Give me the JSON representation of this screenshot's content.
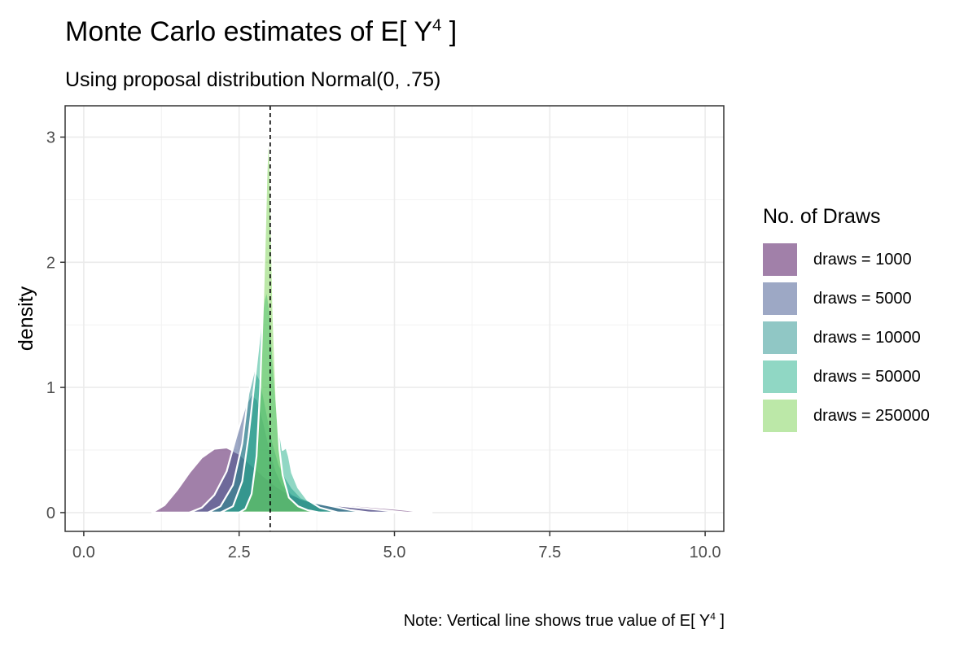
{
  "title": {
    "main": "Monte Carlo estimates of E[ Y",
    "sup": "4",
    "tail": " ]"
  },
  "subtitle": "Using proposal distribution Normal(0, .75)",
  "caption": {
    "main": "Note: Vertical line shows true value of E[ Y",
    "sup": "4",
    "tail": " ]"
  },
  "legend": {
    "title": "No. of Draws",
    "items": [
      {
        "label": "draws = 1000",
        "color": "#440154"
      },
      {
        "label": "draws = 5000",
        "color": "#3B528B"
      },
      {
        "label": "draws = 10000",
        "color": "#21908C"
      },
      {
        "label": "draws = 50000",
        "color": "#21B089"
      },
      {
        "label": "draws = 250000",
        "color": "#7AD151"
      }
    ]
  },
  "chart_data": {
    "type": "area",
    "title": "Monte Carlo estimates of E[ Y^4 ]",
    "subtitle": "Using proposal distribution Normal(0, .75)",
    "xlabel": "",
    "ylabel": "density",
    "xlim": [
      -0.3,
      10.3
    ],
    "ylim": [
      -0.15,
      3.25
    ],
    "xticks": [
      0,
      2.5,
      5,
      7.5,
      10
    ],
    "xtick_labels": [
      "0.0",
      "2.5",
      "5.0",
      "7.5",
      "10.0"
    ],
    "yticks": [
      0,
      1,
      2,
      3
    ],
    "ytick_labels": [
      "0",
      "1",
      "2",
      "3"
    ],
    "grid": true,
    "legend_position": "right",
    "fill_opacity": 0.5,
    "reference_line": {
      "x": 3.0,
      "style": "dashed",
      "color": "#000000"
    },
    "series": [
      {
        "name": "draws = 1000",
        "color": "#440154",
        "x": [
          1.1,
          1.3,
          1.5,
          1.7,
          1.9,
          2.1,
          2.3,
          2.5,
          2.7,
          2.9,
          3.1,
          3.3,
          3.6,
          4.0,
          4.5,
          5.0,
          5.3,
          5.6
        ],
        "y": [
          0.0,
          0.06,
          0.18,
          0.32,
          0.44,
          0.51,
          0.52,
          0.47,
          0.38,
          0.29,
          0.21,
          0.15,
          0.1,
          0.07,
          0.05,
          0.03,
          0.015,
          0.0
        ]
      },
      {
        "name": "draws = 5000",
        "color": "#3B528B",
        "x": [
          1.7,
          1.9,
          2.1,
          2.3,
          2.45,
          2.6,
          2.7,
          2.8,
          2.9,
          3.0,
          3.1,
          3.2,
          3.35,
          3.5,
          3.7,
          4.0,
          4.4,
          4.8,
          5.2
        ],
        "y": [
          0.0,
          0.04,
          0.14,
          0.33,
          0.6,
          0.85,
          0.95,
          0.9,
          0.72,
          0.5,
          0.33,
          0.22,
          0.15,
          0.11,
          0.08,
          0.06,
          0.04,
          0.02,
          0.0
        ]
      },
      {
        "name": "draws = 10000",
        "color": "#21908C",
        "x": [
          2.0,
          2.2,
          2.4,
          2.55,
          2.65,
          2.75,
          2.85,
          2.95,
          3.05,
          3.15,
          3.25,
          3.35,
          3.5,
          3.7,
          4.0,
          4.3,
          4.6
        ],
        "y": [
          0.0,
          0.05,
          0.22,
          0.55,
          0.95,
          1.15,
          1.05,
          0.8,
          0.55,
          0.38,
          0.28,
          0.2,
          0.12,
          0.08,
          0.05,
          0.02,
          0.0
        ]
      },
      {
        "name": "draws = 50000",
        "color": "#21B089",
        "x": [
          2.2,
          2.4,
          2.55,
          2.65,
          2.75,
          2.85,
          2.9,
          2.95,
          3.0,
          3.05,
          3.12,
          3.2,
          3.26,
          3.3,
          3.35,
          3.45,
          3.6,
          3.8,
          4.1
        ],
        "y": [
          0.0,
          0.05,
          0.25,
          0.6,
          1.05,
          1.5,
          1.7,
          1.78,
          1.6,
          1.2,
          0.75,
          0.5,
          0.52,
          0.45,
          0.32,
          0.2,
          0.1,
          0.04,
          0.0
        ]
      },
      {
        "name": "draws = 250000",
        "color": "#7AD151",
        "x": [
          2.5,
          2.6,
          2.7,
          2.78,
          2.84,
          2.88,
          2.92,
          2.94,
          2.96,
          2.98,
          3.0,
          3.02,
          3.05,
          3.1,
          3.15,
          3.2,
          3.3,
          3.45,
          3.6,
          3.8
        ],
        "y": [
          0.0,
          0.03,
          0.15,
          0.45,
          1.0,
          1.6,
          2.3,
          2.7,
          2.95,
          3.0,
          2.8,
          2.3,
          1.6,
          0.9,
          0.5,
          0.3,
          0.12,
          0.05,
          0.02,
          0.0
        ]
      }
    ]
  }
}
